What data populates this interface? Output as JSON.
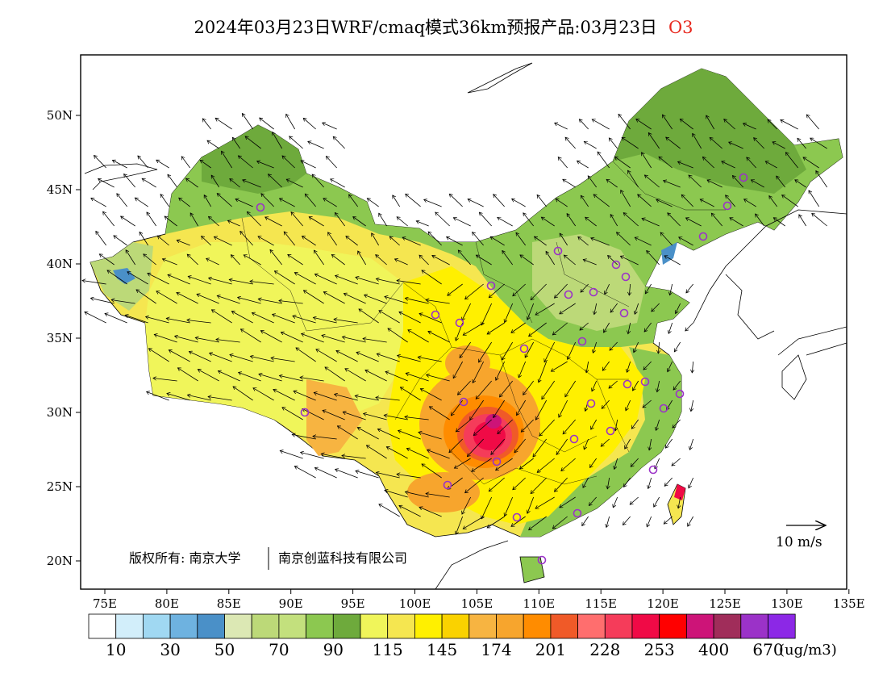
{
  "title": {
    "main": "2024年03月23日WRF/cmaq模式36km预报产品:03月23日",
    "species": "O3"
  },
  "map": {
    "lon_ticks": [
      "75E",
      "80E",
      "85E",
      "90E",
      "95E",
      "100E",
      "105E",
      "110E",
      "115E",
      "120E",
      "125E",
      "130E",
      "135E"
    ],
    "lat_ticks": [
      "50N",
      "45N",
      "40N",
      "35N",
      "30N",
      "25N",
      "20N"
    ],
    "lon_range": [
      73,
      135
    ],
    "lat_range": [
      18,
      54
    ],
    "copyright": "版权所有: 南京大学",
    "company": "南京创蓝科技有限公司",
    "wind_scale_label": "10 m/s"
  },
  "legend": {
    "colors": [
      "#ffffff",
      "#d2eefa",
      "#a0d8f2",
      "#6eb2e0",
      "#4a90c8",
      "#dce8b4",
      "#bcd978",
      "#c3e07d",
      "#8cc850",
      "#6eaa3c",
      "#f0f55a",
      "#f5e650",
      "#fff000",
      "#fad200",
      "#f7b441",
      "#f7a52d",
      "#ff8c00",
      "#f05a28",
      "#ff6e6e",
      "#f53c5a",
      "#f00a46",
      "#ff0000",
      "#cd1478",
      "#a02d5a",
      "#9b32c8",
      "#8c28e6"
    ],
    "labels": [
      "10",
      "30",
      "50",
      "70",
      "90",
      "115",
      "145",
      "174",
      "201",
      "228",
      "253",
      "400",
      "670"
    ],
    "unit": "(ug/m3)"
  }
}
